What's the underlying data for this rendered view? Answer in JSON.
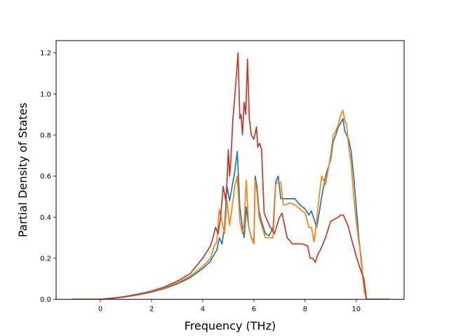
{
  "chart_data": {
    "type": "line",
    "title": "",
    "xlabel": "Frequency (THz)",
    "ylabel": "Partial Density of States",
    "xlim": [
      -1.73,
      11.87
    ],
    "ylim": [
      0,
      1.26
    ],
    "xticks": [
      0,
      2,
      4,
      6,
      8,
      10
    ],
    "yticks": [
      0.0,
      0.2,
      0.4,
      0.6,
      0.8,
      1.0,
      1.2
    ],
    "xtick_labels": [
      "0",
      "2",
      "4",
      "6",
      "8",
      "10"
    ],
    "ytick_labels": [
      "0.0",
      "0.2",
      "0.4",
      "0.6",
      "0.8",
      "1.0",
      "1.2"
    ],
    "grid": false,
    "legend": "none",
    "series": [
      {
        "color": "#1f77b4",
        "x": [
          -1.1,
          -0.5,
          0.0,
          0.5,
          1.0,
          1.5,
          2.0,
          2.5,
          3.0,
          3.5,
          4.0,
          4.3,
          4.45,
          4.55,
          4.65,
          4.75,
          4.85,
          4.95,
          5.05,
          5.15,
          5.25,
          5.35,
          5.45,
          5.55,
          5.62,
          5.7,
          5.8,
          5.9,
          6.0,
          6.05,
          6.12,
          6.2,
          6.3,
          6.45,
          6.6,
          6.75,
          6.85,
          6.95,
          7.05,
          7.15,
          7.25,
          7.4,
          7.6,
          7.8,
          8.0,
          8.15,
          8.25,
          8.35,
          8.45,
          8.55,
          8.65,
          8.8,
          9.0,
          9.1,
          9.2,
          9.3,
          9.4,
          9.48,
          9.55,
          9.62,
          9.7,
          9.8,
          9.9,
          10.0,
          10.1,
          10.2,
          10.3,
          10.4,
          10.8,
          11.3
        ],
        "values": [
          0.0,
          0.0,
          0.0,
          0.005,
          0.012,
          0.022,
          0.035,
          0.052,
          0.075,
          0.105,
          0.15,
          0.185,
          0.22,
          0.24,
          0.3,
          0.27,
          0.35,
          0.55,
          0.48,
          0.55,
          0.62,
          0.72,
          0.45,
          0.35,
          0.3,
          0.45,
          0.35,
          0.3,
          0.28,
          0.6,
          0.55,
          0.43,
          0.38,
          0.32,
          0.31,
          0.35,
          0.57,
          0.6,
          0.49,
          0.49,
          0.49,
          0.49,
          0.49,
          0.46,
          0.44,
          0.41,
          0.43,
          0.39,
          0.35,
          0.42,
          0.5,
          0.6,
          0.68,
          0.77,
          0.8,
          0.84,
          0.86,
          0.88,
          0.82,
          0.8,
          0.78,
          0.72,
          0.6,
          0.45,
          0.3,
          0.18,
          0.05,
          0.0,
          0.0,
          0.0
        ]
      },
      {
        "color": "#ff7f0e",
        "x": [
          -1.1,
          -0.5,
          0.0,
          0.5,
          1.0,
          1.5,
          2.0,
          2.5,
          3.0,
          3.5,
          4.0,
          4.3,
          4.45,
          4.55,
          4.65,
          4.75,
          4.85,
          4.95,
          5.05,
          5.15,
          5.25,
          5.35,
          5.45,
          5.55,
          5.62,
          5.7,
          5.8,
          5.9,
          6.0,
          6.05,
          6.12,
          6.2,
          6.3,
          6.45,
          6.6,
          6.75,
          6.85,
          6.95,
          7.05,
          7.15,
          7.25,
          7.4,
          7.6,
          7.8,
          8.0,
          8.15,
          8.25,
          8.35,
          8.45,
          8.55,
          8.65,
          8.8,
          9.0,
          9.1,
          9.2,
          9.3,
          9.4,
          9.48,
          9.55,
          9.62,
          9.7,
          9.8,
          9.9,
          10.0,
          10.1,
          10.2,
          10.3,
          10.4,
          10.8,
          11.3
        ],
        "values": [
          0.0,
          0.0,
          0.0,
          0.006,
          0.013,
          0.024,
          0.038,
          0.056,
          0.08,
          0.112,
          0.16,
          0.2,
          0.26,
          0.28,
          0.44,
          0.38,
          0.32,
          0.48,
          0.36,
          0.45,
          0.55,
          0.6,
          0.38,
          0.32,
          0.37,
          0.58,
          0.35,
          0.3,
          0.27,
          0.58,
          0.52,
          0.4,
          0.36,
          0.3,
          0.3,
          0.3,
          0.56,
          0.57,
          0.57,
          0.46,
          0.46,
          0.47,
          0.46,
          0.44,
          0.42,
          0.35,
          0.35,
          0.28,
          0.38,
          0.5,
          0.6,
          0.56,
          0.7,
          0.8,
          0.82,
          0.85,
          0.9,
          0.92,
          0.87,
          0.85,
          0.75,
          0.66,
          0.5,
          0.38,
          0.28,
          0.2,
          0.05,
          0.0,
          0.0,
          0.0
        ]
      },
      {
        "color": "#c0392b",
        "x": [
          -1.1,
          -0.5,
          0.0,
          0.5,
          1.0,
          1.5,
          2.0,
          2.5,
          3.0,
          3.5,
          4.0,
          4.3,
          4.4,
          4.5,
          4.6,
          4.7,
          4.8,
          4.9,
          4.95,
          5.0,
          5.05,
          5.1,
          5.18,
          5.26,
          5.32,
          5.38,
          5.45,
          5.5,
          5.55,
          5.62,
          5.68,
          5.75,
          5.82,
          5.9,
          6.0,
          6.1,
          6.15,
          6.22,
          6.3,
          6.4,
          6.6,
          6.8,
          7.0,
          7.1,
          7.3,
          7.5,
          7.7,
          7.9,
          8.1,
          8.2,
          8.3,
          8.4,
          8.5,
          8.6,
          8.8,
          9.0,
          9.15,
          9.3,
          9.4,
          9.5,
          9.6,
          9.7,
          9.8,
          10.0,
          10.15,
          10.3,
          10.4,
          10.8,
          11.3
        ],
        "values": [
          0.0,
          0.0,
          0.0,
          0.006,
          0.014,
          0.026,
          0.04,
          0.06,
          0.088,
          0.124,
          0.2,
          0.26,
          0.3,
          0.35,
          0.32,
          0.4,
          0.55,
          0.48,
          0.58,
          0.73,
          0.6,
          0.68,
          0.88,
          1.0,
          1.1,
          1.2,
          0.88,
          0.9,
          0.8,
          0.96,
          0.9,
          1.17,
          0.88,
          0.8,
          0.78,
          0.84,
          0.74,
          0.76,
          0.73,
          0.42,
          0.36,
          0.32,
          0.4,
          0.42,
          0.3,
          0.27,
          0.27,
          0.27,
          0.26,
          0.2,
          0.2,
          0.18,
          0.22,
          0.24,
          0.3,
          0.38,
          0.39,
          0.4,
          0.41,
          0.41,
          0.38,
          0.35,
          0.3,
          0.21,
          0.15,
          0.1,
          0.0,
          0.0,
          0.0
        ]
      }
    ]
  }
}
